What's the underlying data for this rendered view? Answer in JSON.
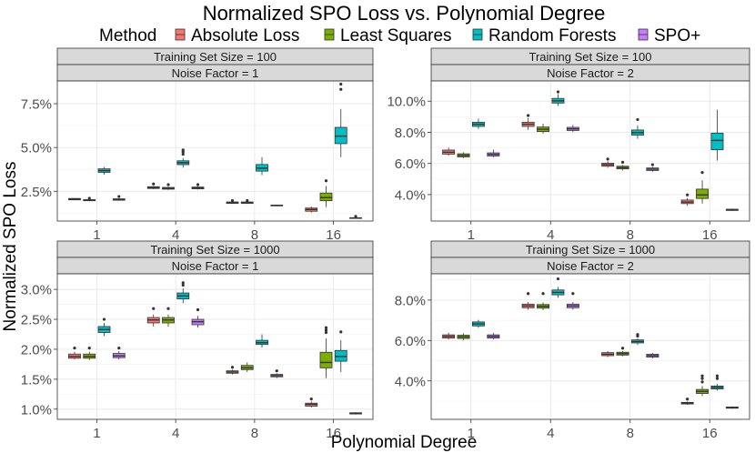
{
  "title": "Normalized SPO Loss vs. Polynomial Degree",
  "xlabel": "Polynomial Degree",
  "ylabel": "Normalized SPO Loss",
  "legend": {
    "title": "Method",
    "entries": [
      {
        "name": "Absolute Loss",
        "color": "#F8766D"
      },
      {
        "name": "Least Squares",
        "color": "#7CAE00"
      },
      {
        "name": "Random Forests",
        "color": "#00BFC4"
      },
      {
        "name": "SPO+",
        "color": "#C77CFF"
      }
    ]
  },
  "chart_data": {
    "type": "boxplot",
    "categories": [
      "1",
      "4",
      "8",
      "16"
    ],
    "methods": [
      "Absolute Loss",
      "Least Squares",
      "Random Forests",
      "SPO+"
    ],
    "facets": [
      {
        "strip_top": "Training Set Size = 100",
        "strip_bottom": "Noise Factor = 1",
        "ylim": [
          0.008,
          0.088
        ],
        "yticks": [
          0.025,
          0.05,
          0.075
        ],
        "yticklabels": [
          "2.5%",
          "5.0%",
          "7.5%"
        ],
        "boxes": [
          [
            {
              "min": 0.0198,
              "q1": 0.0201,
              "med": 0.0205,
              "q3": 0.0209,
              "max": 0.0212,
              "outliers": []
            },
            {
              "min": 0.0193,
              "q1": 0.0196,
              "med": 0.0199,
              "q3": 0.0202,
              "max": 0.0205,
              "outliers": [
                0.021
              ]
            },
            {
              "min": 0.0345,
              "q1": 0.0358,
              "med": 0.0368,
              "q3": 0.0378,
              "max": 0.039,
              "outliers": []
            },
            {
              "min": 0.0196,
              "q1": 0.0199,
              "med": 0.0203,
              "q3": 0.0207,
              "max": 0.021,
              "outliers": [
                0.022
              ]
            }
          ],
          [
            {
              "min": 0.0262,
              "q1": 0.0266,
              "med": 0.0271,
              "q3": 0.0276,
              "max": 0.028,
              "outliers": [
                0.0292
              ]
            },
            {
              "min": 0.0258,
              "q1": 0.0262,
              "med": 0.0267,
              "q3": 0.0272,
              "max": 0.0276,
              "outliers": [
                0.0288
              ]
            },
            {
              "min": 0.0385,
              "q1": 0.0402,
              "med": 0.0413,
              "q3": 0.0424,
              "max": 0.044,
              "outliers": [
                0.0462,
                0.0475,
                0.0486
              ]
            },
            {
              "min": 0.026,
              "q1": 0.0264,
              "med": 0.0269,
              "q3": 0.0274,
              "max": 0.0278,
              "outliers": [
                0.0288
              ]
            }
          ],
          [
            {
              "min": 0.0178,
              "q1": 0.0181,
              "med": 0.0185,
              "q3": 0.0189,
              "max": 0.0192,
              "outliers": [
                0.0197
              ]
            },
            {
              "min": 0.0178,
              "q1": 0.0181,
              "med": 0.0185,
              "q3": 0.0189,
              "max": 0.0193,
              "outliers": [
                0.0197
              ]
            },
            {
              "min": 0.0342,
              "q1": 0.0365,
              "med": 0.0382,
              "q3": 0.0403,
              "max": 0.0445,
              "outliers": []
            },
            {
              "min": 0.0165,
              "q1": 0.0167,
              "med": 0.0169,
              "q3": 0.0171,
              "max": 0.0173,
              "outliers": []
            }
          ],
          [
            {
              "min": 0.0128,
              "q1": 0.0136,
              "med": 0.0146,
              "q3": 0.0154,
              "max": 0.0163,
              "outliers": []
            },
            {
              "min": 0.016,
              "q1": 0.0196,
              "med": 0.0214,
              "q3": 0.024,
              "max": 0.028,
              "outliers": [
                0.031
              ]
            },
            {
              "min": 0.0445,
              "q1": 0.0522,
              "med": 0.0565,
              "q3": 0.0615,
              "max": 0.072,
              "outliers": [
                0.0832,
                0.0862
              ]
            },
            {
              "min": 0.0093,
              "q1": 0.0095,
              "med": 0.0097,
              "q3": 0.0099,
              "max": 0.0101,
              "outliers": [
                0.0107
              ]
            }
          ]
        ]
      },
      {
        "strip_top": "Training Set Size = 100",
        "strip_bottom": "Noise Factor = 2",
        "ylim": [
          0.023,
          0.113
        ],
        "yticks": [
          0.04,
          0.06,
          0.08,
          0.1
        ],
        "yticklabels": [
          "4.0%",
          "6.0%",
          "8.0%",
          "10.0%"
        ],
        "boxes": [
          [
            {
              "min": 0.065,
              "q1": 0.066,
              "med": 0.0672,
              "q3": 0.0686,
              "max": 0.0702,
              "outliers": []
            },
            {
              "min": 0.0635,
              "q1": 0.0642,
              "med": 0.0652,
              "q3": 0.0662,
              "max": 0.0672,
              "outliers": []
            },
            {
              "min": 0.0822,
              "q1": 0.0838,
              "med": 0.0852,
              "q3": 0.0865,
              "max": 0.0888,
              "outliers": []
            },
            {
              "min": 0.064,
              "q1": 0.0648,
              "med": 0.0658,
              "q3": 0.0668,
              "max": 0.0688,
              "outliers": []
            }
          ],
          [
            {
              "min": 0.0815,
              "q1": 0.0838,
              "med": 0.0852,
              "q3": 0.0865,
              "max": 0.0892,
              "outliers": [
                0.0908
              ]
            },
            {
              "min": 0.0792,
              "q1": 0.0805,
              "med": 0.082,
              "q3": 0.0834,
              "max": 0.0855,
              "outliers": []
            },
            {
              "min": 0.097,
              "q1": 0.0988,
              "med": 0.1002,
              "q3": 0.1018,
              "max": 0.1045,
              "outliers": [
                0.106
              ]
            },
            {
              "min": 0.0802,
              "q1": 0.0812,
              "med": 0.0822,
              "q3": 0.0832,
              "max": 0.0848,
              "outliers": []
            }
          ],
          [
            {
              "min": 0.0572,
              "q1": 0.0582,
              "med": 0.0592,
              "q3": 0.0602,
              "max": 0.0615,
              "outliers": [
                0.0628
              ]
            },
            {
              "min": 0.0555,
              "q1": 0.0565,
              "med": 0.0573,
              "q3": 0.0582,
              "max": 0.059,
              "outliers": [
                0.0608
              ]
            },
            {
              "min": 0.0758,
              "q1": 0.0782,
              "med": 0.0798,
              "q3": 0.0815,
              "max": 0.0845,
              "outliers": [
                0.0882
              ]
            },
            {
              "min": 0.0548,
              "q1": 0.0555,
              "med": 0.0563,
              "q3": 0.0571,
              "max": 0.0578,
              "outliers": [
                0.0592
              ]
            }
          ],
          [
            {
              "min": 0.0328,
              "q1": 0.0342,
              "med": 0.0352,
              "q3": 0.0365,
              "max": 0.0378,
              "outliers": [
                0.0398
              ]
            },
            {
              "min": 0.0342,
              "q1": 0.0375,
              "med": 0.0398,
              "q3": 0.0435,
              "max": 0.0492,
              "outliers": [
                0.0542
              ]
            },
            {
              "min": 0.0618,
              "q1": 0.0688,
              "med": 0.0748,
              "q3": 0.0795,
              "max": 0.0945,
              "outliers": []
            },
            {
              "min": 0.0295,
              "q1": 0.0298,
              "med": 0.0302,
              "q3": 0.0306,
              "max": 0.031,
              "outliers": []
            }
          ]
        ]
      },
      {
        "strip_top": "Training Set Size = 1000",
        "strip_bottom": "Noise Factor = 1",
        "ylim": [
          0.0083,
          0.0326
        ],
        "yticks": [
          0.01,
          0.015,
          0.02,
          0.025,
          0.03
        ],
        "yticklabels": [
          "1.0%",
          "1.5%",
          "2.0%",
          "2.5%",
          "3.0%"
        ],
        "boxes": [
          [
            {
              "min": 0.0183,
              "q1": 0.0185,
              "med": 0.0188,
              "q3": 0.0192,
              "max": 0.0196,
              "outliers": [
                0.0202
              ]
            },
            {
              "min": 0.0182,
              "q1": 0.0185,
              "med": 0.0188,
              "q3": 0.0192,
              "max": 0.0196,
              "outliers": [
                0.0202
              ]
            },
            {
              "min": 0.0222,
              "q1": 0.0228,
              "med": 0.0233,
              "q3": 0.0238,
              "max": 0.0244,
              "outliers": [
                0.025
              ]
            },
            {
              "min": 0.0183,
              "q1": 0.0186,
              "med": 0.0189,
              "q3": 0.0193,
              "max": 0.0197,
              "outliers": [
                0.0202
              ]
            }
          ],
          [
            {
              "min": 0.0238,
              "q1": 0.0244,
              "med": 0.0249,
              "q3": 0.0253,
              "max": 0.0258,
              "outliers": [
                0.0268
              ]
            },
            {
              "min": 0.0238,
              "q1": 0.0244,
              "med": 0.0249,
              "q3": 0.0253,
              "max": 0.0258,
              "outliers": [
                0.0268
              ]
            },
            {
              "min": 0.0277,
              "q1": 0.0284,
              "med": 0.0289,
              "q3": 0.0294,
              "max": 0.0302,
              "outliers": [
                0.0307,
                0.0311
              ]
            },
            {
              "min": 0.0236,
              "q1": 0.0241,
              "med": 0.0246,
              "q3": 0.025,
              "max": 0.0256,
              "outliers": [
                0.0266
              ]
            }
          ],
          [
            {
              "min": 0.0158,
              "q1": 0.016,
              "med": 0.0162,
              "q3": 0.0164,
              "max": 0.0166,
              "outliers": [
                0.017
              ]
            },
            {
              "min": 0.0162,
              "q1": 0.0166,
              "med": 0.0169,
              "q3": 0.0173,
              "max": 0.0178,
              "outliers": []
            },
            {
              "min": 0.0203,
              "q1": 0.0208,
              "med": 0.0211,
              "q3": 0.0215,
              "max": 0.0225,
              "outliers": []
            },
            {
              "min": 0.0152,
              "q1": 0.0154,
              "med": 0.0156,
              "q3": 0.0158,
              "max": 0.016,
              "outliers": [
                0.0164
              ]
            }
          ],
          [
            {
              "min": 0.0103,
              "q1": 0.0105,
              "med": 0.0108,
              "q3": 0.011,
              "max": 0.0113,
              "outliers": [
                0.0117
              ]
            },
            {
              "min": 0.0152,
              "q1": 0.0169,
              "med": 0.0178,
              "q3": 0.0195,
              "max": 0.0218,
              "outliers": [
                0.0228,
                0.0232,
                0.0236
              ]
            },
            {
              "min": 0.0162,
              "q1": 0.018,
              "med": 0.0188,
              "q3": 0.0198,
              "max": 0.0215,
              "outliers": [
                0.0229
              ]
            },
            {
              "min": 0.0091,
              "q1": 0.0092,
              "med": 0.0093,
              "q3": 0.0094,
              "max": 0.0095,
              "outliers": []
            }
          ]
        ]
      },
      {
        "strip_top": "Training Set Size = 1000",
        "strip_bottom": "Noise Factor = 2",
        "ylim": [
          0.021,
          0.093
        ],
        "yticks": [
          0.04,
          0.06,
          0.08
        ],
        "yticklabels": [
          "4.0%",
          "6.0%",
          "8.0%"
        ],
        "boxes": [
          [
            {
              "min": 0.0605,
              "q1": 0.0612,
              "med": 0.062,
              "q3": 0.0628,
              "max": 0.0638,
              "outliers": []
            },
            {
              "min": 0.0602,
              "q1": 0.061,
              "med": 0.0618,
              "q3": 0.0626,
              "max": 0.0636,
              "outliers": []
            },
            {
              "min": 0.0662,
              "q1": 0.0672,
              "med": 0.0682,
              "q3": 0.0692,
              "max": 0.0702,
              "outliers": []
            },
            {
              "min": 0.0605,
              "q1": 0.0612,
              "med": 0.062,
              "q3": 0.0628,
              "max": 0.0638,
              "outliers": []
            }
          ],
          [
            {
              "min": 0.0752,
              "q1": 0.0762,
              "med": 0.0771,
              "q3": 0.078,
              "max": 0.079,
              "outliers": [
                0.0832
              ]
            },
            {
              "min": 0.075,
              "q1": 0.076,
              "med": 0.0769,
              "q3": 0.0778,
              "max": 0.0788,
              "outliers": [
                0.0832
              ]
            },
            {
              "min": 0.0812,
              "q1": 0.0826,
              "med": 0.0838,
              "q3": 0.085,
              "max": 0.0865,
              "outliers": [
                0.0905
              ]
            },
            {
              "min": 0.0752,
              "q1": 0.0762,
              "med": 0.0771,
              "q3": 0.078,
              "max": 0.079,
              "outliers": [
                0.0832
              ]
            }
          ],
          [
            {
              "min": 0.0518,
              "q1": 0.0525,
              "med": 0.0532,
              "q3": 0.054,
              "max": 0.0548,
              "outliers": []
            },
            {
              "min": 0.0522,
              "q1": 0.0528,
              "med": 0.0535,
              "q3": 0.0542,
              "max": 0.0548,
              "outliers": [
                0.0562
              ]
            },
            {
              "min": 0.0578,
              "q1": 0.0588,
              "med": 0.0595,
              "q3": 0.0603,
              "max": 0.061,
              "outliers": [
                0.0622,
                0.063
              ]
            },
            {
              "min": 0.0512,
              "q1": 0.0518,
              "med": 0.0525,
              "q3": 0.0532,
              "max": 0.0538,
              "outliers": []
            }
          ],
          [
            {
              "min": 0.0282,
              "q1": 0.0286,
              "med": 0.029,
              "q3": 0.0294,
              "max": 0.0298,
              "outliers": [
                0.031
              ]
            },
            {
              "min": 0.0325,
              "q1": 0.0338,
              "med": 0.0348,
              "q3": 0.0358,
              "max": 0.0375,
              "outliers": [
                0.0395,
                0.0412,
                0.0425
              ]
            },
            {
              "min": 0.0352,
              "q1": 0.036,
              "med": 0.0368,
              "q3": 0.0375,
              "max": 0.0385,
              "outliers": [
                0.0412,
                0.0425
              ]
            },
            {
              "min": 0.0262,
              "q1": 0.0265,
              "med": 0.0268,
              "q3": 0.0271,
              "max": 0.0274,
              "outliers": []
            }
          ]
        ]
      }
    ]
  }
}
